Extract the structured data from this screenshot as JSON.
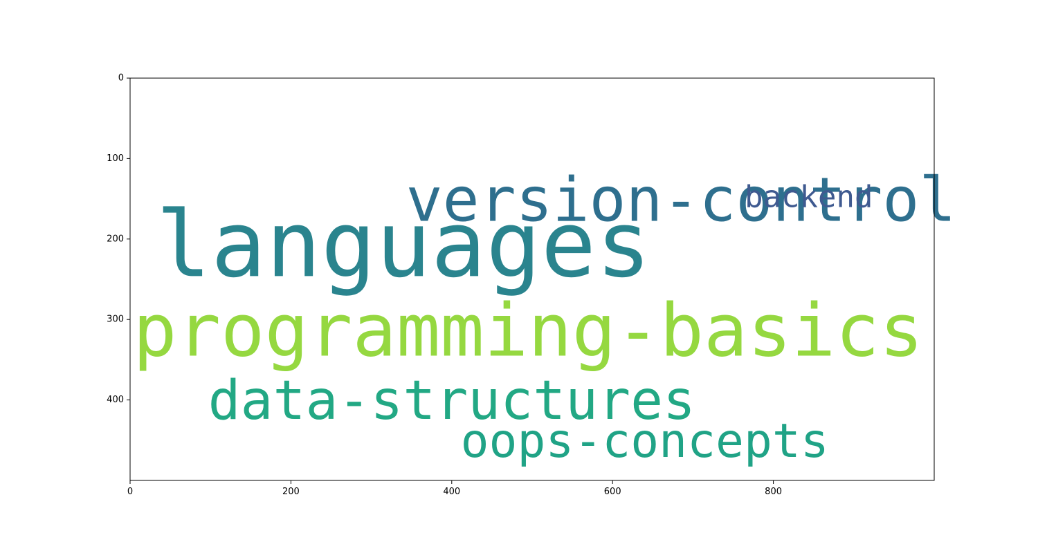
{
  "chart_data": {
    "type": "wordcloud",
    "title": "",
    "xlabel": "",
    "ylabel": "",
    "xlim": [
      0,
      1000
    ],
    "ylim": [
      500,
      0
    ],
    "xticks": [
      0,
      200,
      400,
      600,
      800
    ],
    "yticks": [
      0,
      100,
      200,
      300,
      400
    ],
    "xtick_labels": [
      "0",
      "200",
      "400",
      "600",
      "800"
    ],
    "ytick_labels": [
      "0",
      "100",
      "200",
      "300",
      "400"
    ],
    "grid": false,
    "words": [
      {
        "text": "programming-basics",
        "x": 495,
        "y": 320,
        "color": "#95d840"
      },
      {
        "text": "languages",
        "x": 340,
        "y": 215,
        "color": "#2a848e"
      },
      {
        "text": "version-control",
        "x": 685,
        "y": 157,
        "color": "#2e6f8e"
      },
      {
        "text": "data-structures",
        "x": 400,
        "y": 405,
        "color": "#22a884"
      },
      {
        "text": "oops-concepts",
        "x": 640,
        "y": 455,
        "color": "#20a386"
      },
      {
        "text": "backend",
        "x": 844,
        "y": 150,
        "color": "#3f5a90"
      }
    ]
  }
}
